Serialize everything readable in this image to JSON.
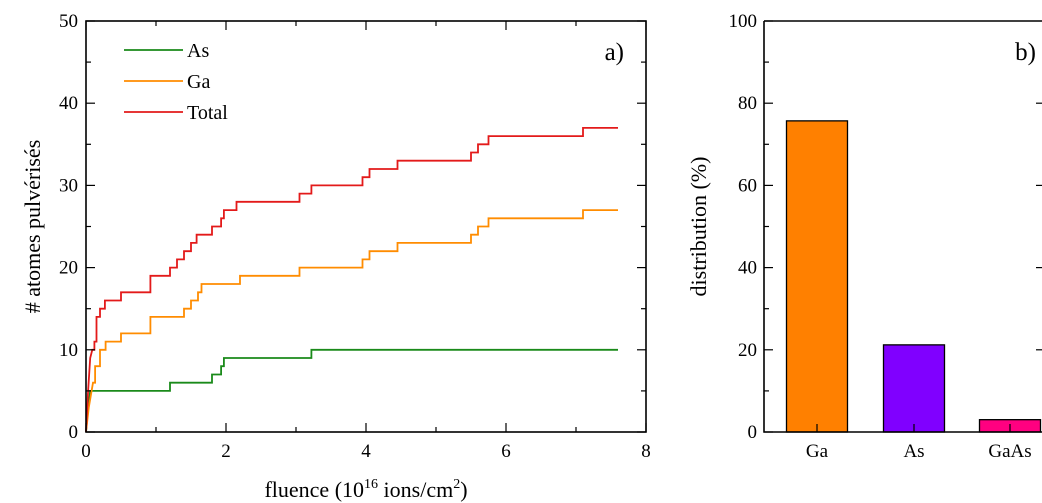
{
  "chart_data": [
    {
      "type": "line",
      "panel_label": "a)",
      "xlabel_prefix": "fluence (10",
      "xlabel_exp": "16",
      "xlabel_mid": " ions/cm",
      "xlabel_exp2": "2",
      "xlabel_suffix": ")",
      "ylabel": "# atomes pulvérisés",
      "xlim": [
        0,
        8
      ],
      "ylim": [
        0,
        50
      ],
      "xticks": [
        0,
        2,
        4,
        6,
        8
      ],
      "yticks": [
        0,
        10,
        20,
        30,
        40,
        50
      ],
      "legend_position": "top-left",
      "step": true,
      "series": [
        {
          "name": "As",
          "color": "#1a8a1a",
          "points": [
            [
              0,
              0
            ],
            [
              0.03,
              3
            ],
            [
              0.06,
              5
            ],
            [
              1.2,
              5
            ],
            [
              1.2,
              6
            ],
            [
              1.8,
              6
            ],
            [
              1.8,
              7
            ],
            [
              1.93,
              7
            ],
            [
              1.93,
              8
            ],
            [
              1.97,
              8
            ],
            [
              1.97,
              9
            ],
            [
              3.22,
              9
            ],
            [
              3.22,
              10
            ],
            [
              7.6,
              10
            ]
          ]
        },
        {
          "name": "Ga",
          "color": "#ff8c00",
          "points": [
            [
              0,
              0
            ],
            [
              0.04,
              3
            ],
            [
              0.1,
              6
            ],
            [
              0.13,
              6
            ],
            [
              0.13,
              8
            ],
            [
              0.2,
              8
            ],
            [
              0.2,
              10
            ],
            [
              0.28,
              10
            ],
            [
              0.28,
              11
            ],
            [
              0.5,
              11
            ],
            [
              0.5,
              12
            ],
            [
              0.92,
              12
            ],
            [
              0.92,
              14
            ],
            [
              1.4,
              14
            ],
            [
              1.4,
              15
            ],
            [
              1.5,
              15
            ],
            [
              1.5,
              16
            ],
            [
              1.6,
              16
            ],
            [
              1.6,
              17
            ],
            [
              1.65,
              17
            ],
            [
              1.65,
              18
            ],
            [
              2.2,
              18
            ],
            [
              2.2,
              19
            ],
            [
              3.05,
              19
            ],
            [
              3.05,
              20
            ],
            [
              3.95,
              20
            ],
            [
              3.95,
              21
            ],
            [
              4.05,
              21
            ],
            [
              4.05,
              22
            ],
            [
              4.45,
              22
            ],
            [
              4.45,
              23
            ],
            [
              5.5,
              23
            ],
            [
              5.5,
              24
            ],
            [
              5.6,
              24
            ],
            [
              5.6,
              25
            ],
            [
              5.75,
              25
            ],
            [
              5.75,
              26
            ],
            [
              7.1,
              26
            ],
            [
              7.1,
              27
            ],
            [
              7.6,
              27
            ]
          ]
        },
        {
          "name": "Total",
          "color": "#e31a1a",
          "points": [
            [
              0,
              0
            ],
            [
              0.03,
              5
            ],
            [
              0.06,
              9
            ],
            [
              0.09,
              10
            ],
            [
              0.12,
              10
            ],
            [
              0.12,
              11
            ],
            [
              0.15,
              11
            ],
            [
              0.15,
              14
            ],
            [
              0.2,
              14
            ],
            [
              0.2,
              15
            ],
            [
              0.27,
              15
            ],
            [
              0.27,
              16
            ],
            [
              0.5,
              16
            ],
            [
              0.5,
              17
            ],
            [
              0.92,
              17
            ],
            [
              0.92,
              19
            ],
            [
              1.2,
              19
            ],
            [
              1.2,
              20
            ],
            [
              1.3,
              20
            ],
            [
              1.3,
              21
            ],
            [
              1.4,
              21
            ],
            [
              1.4,
              22
            ],
            [
              1.5,
              22
            ],
            [
              1.5,
              23
            ],
            [
              1.58,
              23
            ],
            [
              1.58,
              24
            ],
            [
              1.8,
              24
            ],
            [
              1.8,
              25
            ],
            [
              1.93,
              25
            ],
            [
              1.93,
              26
            ],
            [
              1.97,
              26
            ],
            [
              1.97,
              27
            ],
            [
              2.15,
              27
            ],
            [
              2.15,
              28
            ],
            [
              3.05,
              28
            ],
            [
              3.05,
              29
            ],
            [
              3.22,
              29
            ],
            [
              3.22,
              30
            ],
            [
              3.95,
              30
            ],
            [
              3.95,
              31
            ],
            [
              4.05,
              31
            ],
            [
              4.05,
              32
            ],
            [
              4.45,
              32
            ],
            [
              4.45,
              33
            ],
            [
              5.5,
              33
            ],
            [
              5.5,
              34
            ],
            [
              5.6,
              34
            ],
            [
              5.6,
              35
            ],
            [
              5.75,
              35
            ],
            [
              5.75,
              36
            ],
            [
              7.1,
              36
            ],
            [
              7.1,
              37
            ],
            [
              7.6,
              37
            ]
          ]
        }
      ]
    },
    {
      "type": "bar",
      "panel_label": "b)",
      "ylabel": "distribution (%)",
      "ylim": [
        0,
        100
      ],
      "yticks": [
        0,
        20,
        40,
        60,
        80,
        100
      ],
      "categories": [
        "Ga",
        "As",
        "GaAs"
      ],
      "values": [
        75.7,
        21.2,
        3.0
      ],
      "colors": [
        "#ff8000",
        "#8000ff",
        "#ff0080"
      ]
    }
  ]
}
